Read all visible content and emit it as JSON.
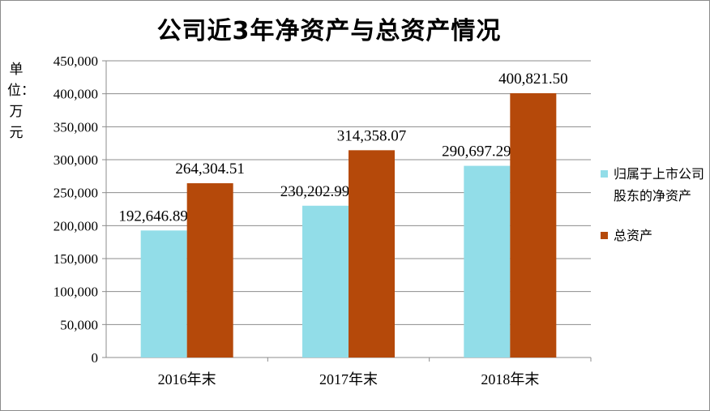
{
  "chart_data": {
    "type": "bar",
    "title": "公司近3年净资产与总资产情况",
    "ylabel": "单位：万元",
    "categories": [
      "2016年末",
      "2017年末",
      "2018年末"
    ],
    "series": [
      {
        "name": "归属于上市公司股东的净资产",
        "values": [
          192646.89,
          230202.99,
          290697.29
        ],
        "labels": [
          "192,646.89",
          "230,202.99",
          "290,697.29"
        ],
        "color": "#92DDE8"
      },
      {
        "name": "总资产",
        "values": [
          264304.51,
          314358.07,
          400821.5
        ],
        "labels": [
          "264,304.51",
          "314,358.07",
          "400,821.50"
        ],
        "color": "#B5490A"
      }
    ],
    "ylim": [
      0,
      450000
    ],
    "yticks": [
      "0",
      "50,000",
      "100,000",
      "150,000",
      "200,000",
      "250,000",
      "300,000",
      "350,000",
      "400,000",
      "450,000"
    ],
    "grid": true,
    "legend": "right"
  }
}
